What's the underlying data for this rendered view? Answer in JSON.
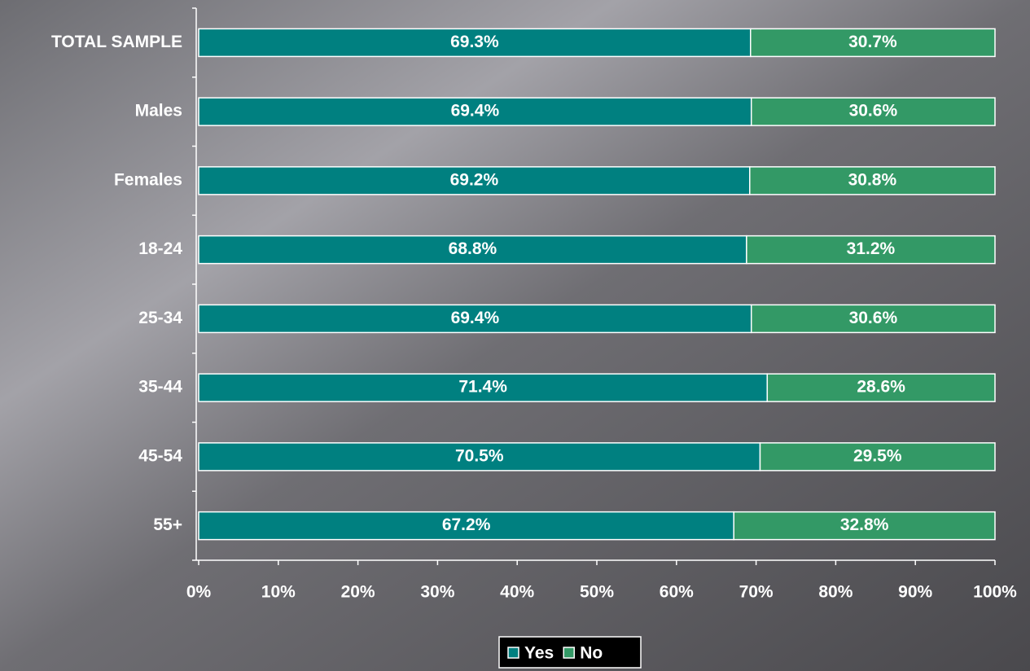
{
  "chart_data": {
    "type": "stacked-bar-horizontal",
    "categories": [
      "TOTAL SAMPLE",
      "Males",
      "Females",
      "18-24",
      "25-34",
      "35-44",
      "45-54",
      "55+"
    ],
    "series": [
      {
        "name": "Yes",
        "color": "#008080",
        "values": [
          69.3,
          69.4,
          69.2,
          68.8,
          69.4,
          71.4,
          70.5,
          67.2
        ],
        "value_labels": [
          "69.3%",
          "69.4%",
          "69.2%",
          "68.8%",
          "69.4%",
          "71.4%",
          "70.5%",
          "67.2%"
        ]
      },
      {
        "name": "No",
        "color": "#339966",
        "values": [
          30.7,
          30.6,
          30.8,
          31.2,
          30.6,
          28.6,
          29.5,
          32.8
        ],
        "value_labels": [
          "30.7%",
          "30.6%",
          "30.8%",
          "31.2%",
          "30.6%",
          "28.6%",
          "29.5%",
          "32.8%"
        ]
      }
    ],
    "xlim": [
      0,
      100
    ],
    "xticks": [
      {
        "value": 0,
        "label": "0%"
      },
      {
        "value": 10,
        "label": "10%"
      },
      {
        "value": 20,
        "label": "20%"
      },
      {
        "value": 30,
        "label": "30%"
      },
      {
        "value": 40,
        "label": "40%"
      },
      {
        "value": 50,
        "label": "50%"
      },
      {
        "value": 60,
        "label": "60%"
      },
      {
        "value": 70,
        "label": "70%"
      },
      {
        "value": 80,
        "label": "80%"
      },
      {
        "value": 90,
        "label": "90%"
      },
      {
        "value": 100,
        "label": "100%"
      }
    ],
    "legend": "bottom"
  }
}
